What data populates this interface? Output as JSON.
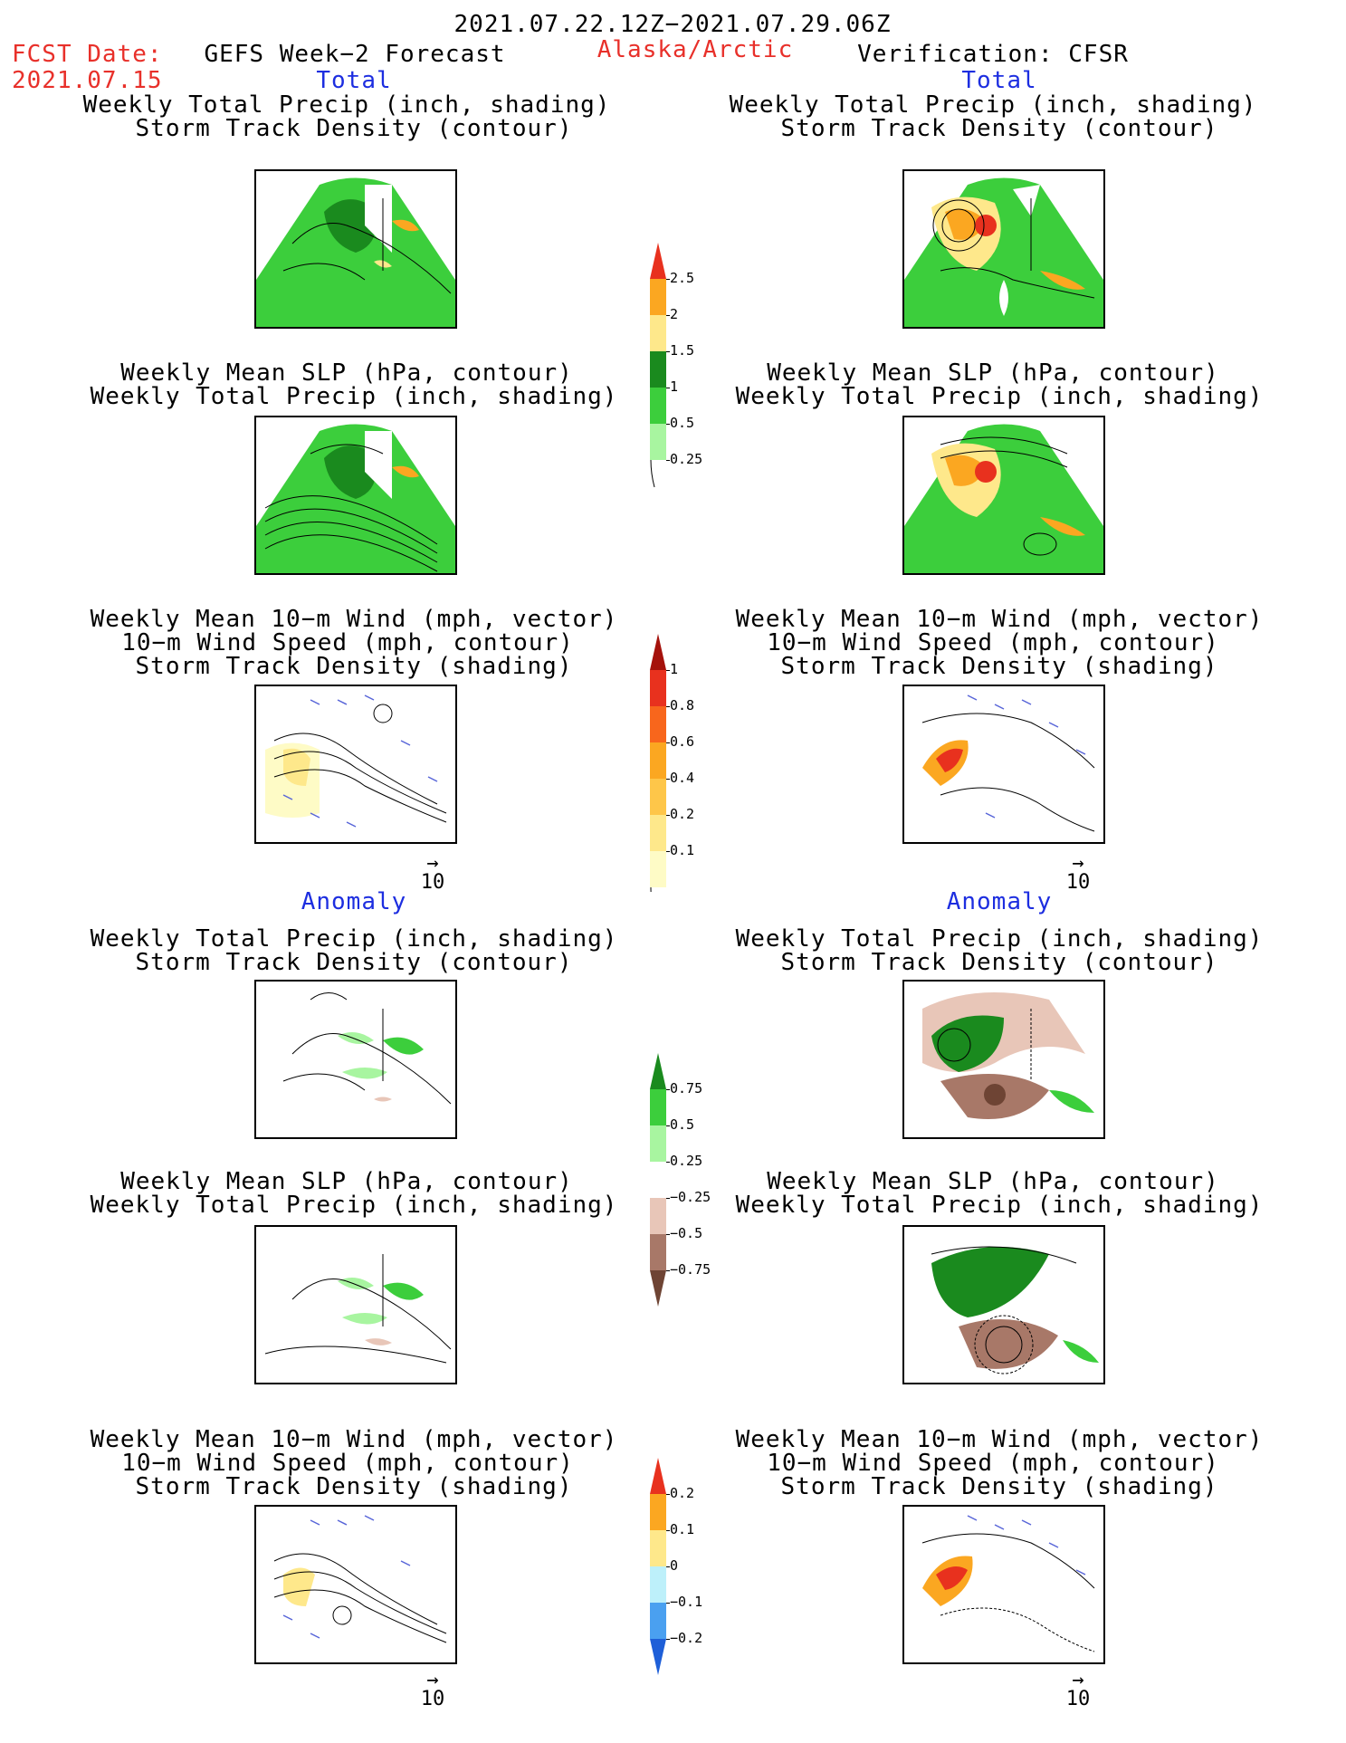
{
  "header": {
    "period": "2021.07.22.12Z−2021.07.29.06Z",
    "fcst_label": "FCST Date:",
    "fcst_date": "2021.07.15",
    "model": "GEFS Week−2 Forecast",
    "region": "Alaska/Arctic",
    "verification": "Verification: CFSR"
  },
  "sections": {
    "total": "Total",
    "anomaly": "Anomaly"
  },
  "titles": {
    "precip_track": [
      "Weekly Total Precip (inch, shading)",
      "Storm Track Density (contour)"
    ],
    "slp_precip": [
      "Weekly Mean SLP (hPa, contour)",
      "Weekly Total Precip (inch, shading)"
    ],
    "wind_track": [
      "Weekly Mean 10−m Wind (mph, vector)",
      "10−m Wind Speed (mph, contour)",
      "Storm Track Density (shading)"
    ]
  },
  "vector_ref": {
    "value": "10",
    "arrow": "→"
  },
  "colorbars": {
    "total_precip": {
      "labels": [
        "2.5",
        "2",
        "1.5",
        "1",
        "0.5",
        "0.25"
      ],
      "colors": [
        "#e8311e",
        "#fba721",
        "#fee88b",
        "#1a8a1e",
        "#3cce3c",
        "#a8f5a0"
      ]
    },
    "track_density": {
      "labels": [
        "1",
        "0.8",
        "0.6",
        "0.4",
        "0.2",
        "0.1"
      ],
      "colors": [
        "#a5120c",
        "#e8311e",
        "#f8661c",
        "#fba721",
        "#fec649",
        "#fee88b",
        "#fefbc6"
      ]
    },
    "precip_anomaly": {
      "labels": [
        "0.75",
        "0.5",
        "0.25",
        "−0.25",
        "−0.5",
        "−0.75"
      ],
      "colors": [
        "#1a8a1e",
        "#3cce3c",
        "#a8f5a0",
        "#ffffff",
        "#e8c6b8",
        "#a87868",
        "#6e4434"
      ]
    },
    "track_anomaly": {
      "labels": [
        "0.2",
        "0.1",
        "0",
        "−0.1",
        "−0.2"
      ],
      "colors": [
        "#e8311e",
        "#fba721",
        "#fee88b",
        "#bdf0fa",
        "#4aa0f0",
        "#1e5fd8"
      ]
    }
  }
}
